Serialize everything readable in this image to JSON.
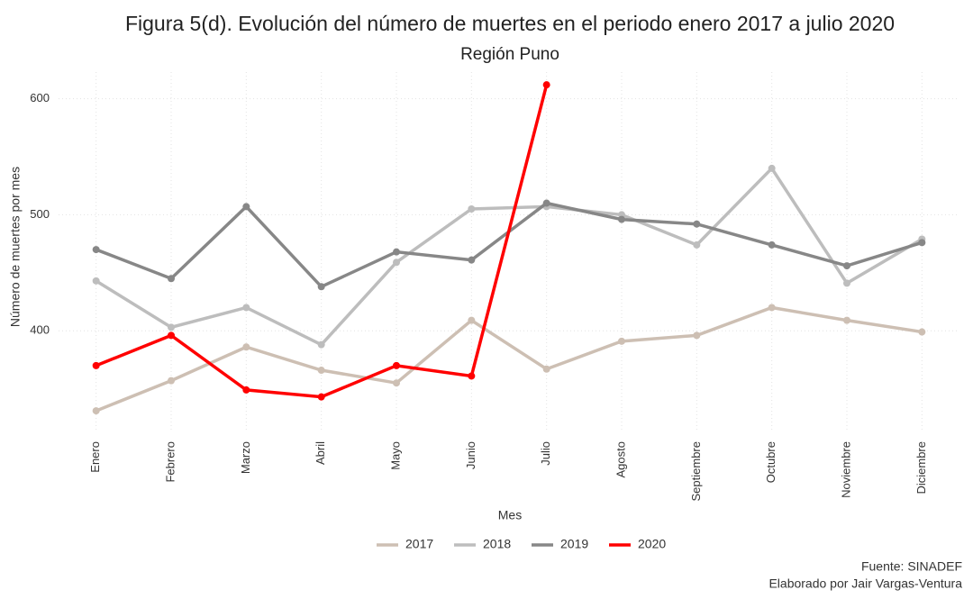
{
  "chart_data": {
    "type": "line",
    "title": "Figura 5(d). Evolución del número de muertes en el periodo enero 2017 a julio 2020",
    "subtitle": "Región Puno",
    "x_label": "Mes",
    "y_label": "Número de muertes por mes",
    "categories": [
      "Enero",
      "Febrero",
      "Marzo",
      "Abril",
      "Mayo",
      "Junio",
      "Julio",
      "Agosto",
      "Septiembre",
      "Octubre",
      "Noviembre",
      "Diciembre"
    ],
    "series": [
      {
        "name": "2017",
        "color": "#cdbfb3",
        "values": [
          331,
          357,
          386,
          366,
          355,
          409,
          367,
          391,
          396,
          420,
          409,
          399
        ]
      },
      {
        "name": "2018",
        "color": "#bdbdbd",
        "values": [
          443,
          403,
          420,
          388,
          459,
          505,
          507,
          500,
          474,
          540,
          441,
          479
        ]
      },
      {
        "name": "2019",
        "color": "#878787",
        "values": [
          470,
          445,
          507,
          438,
          468,
          461,
          510,
          496,
          492,
          474,
          456,
          476
        ]
      },
      {
        "name": "2020",
        "color": "#ff0000",
        "values": [
          370,
          396,
          349,
          343,
          370,
          361,
          612,
          null,
          null,
          null,
          null,
          null
        ]
      }
    ],
    "ylim": [
      314,
      623
    ],
    "yticks": [
      400,
      500,
      600
    ],
    "grid": true,
    "legend": "bottom",
    "caption": [
      "Fuente: SINADEF",
      "Elaborado por Jair Vargas-Ventura"
    ]
  }
}
